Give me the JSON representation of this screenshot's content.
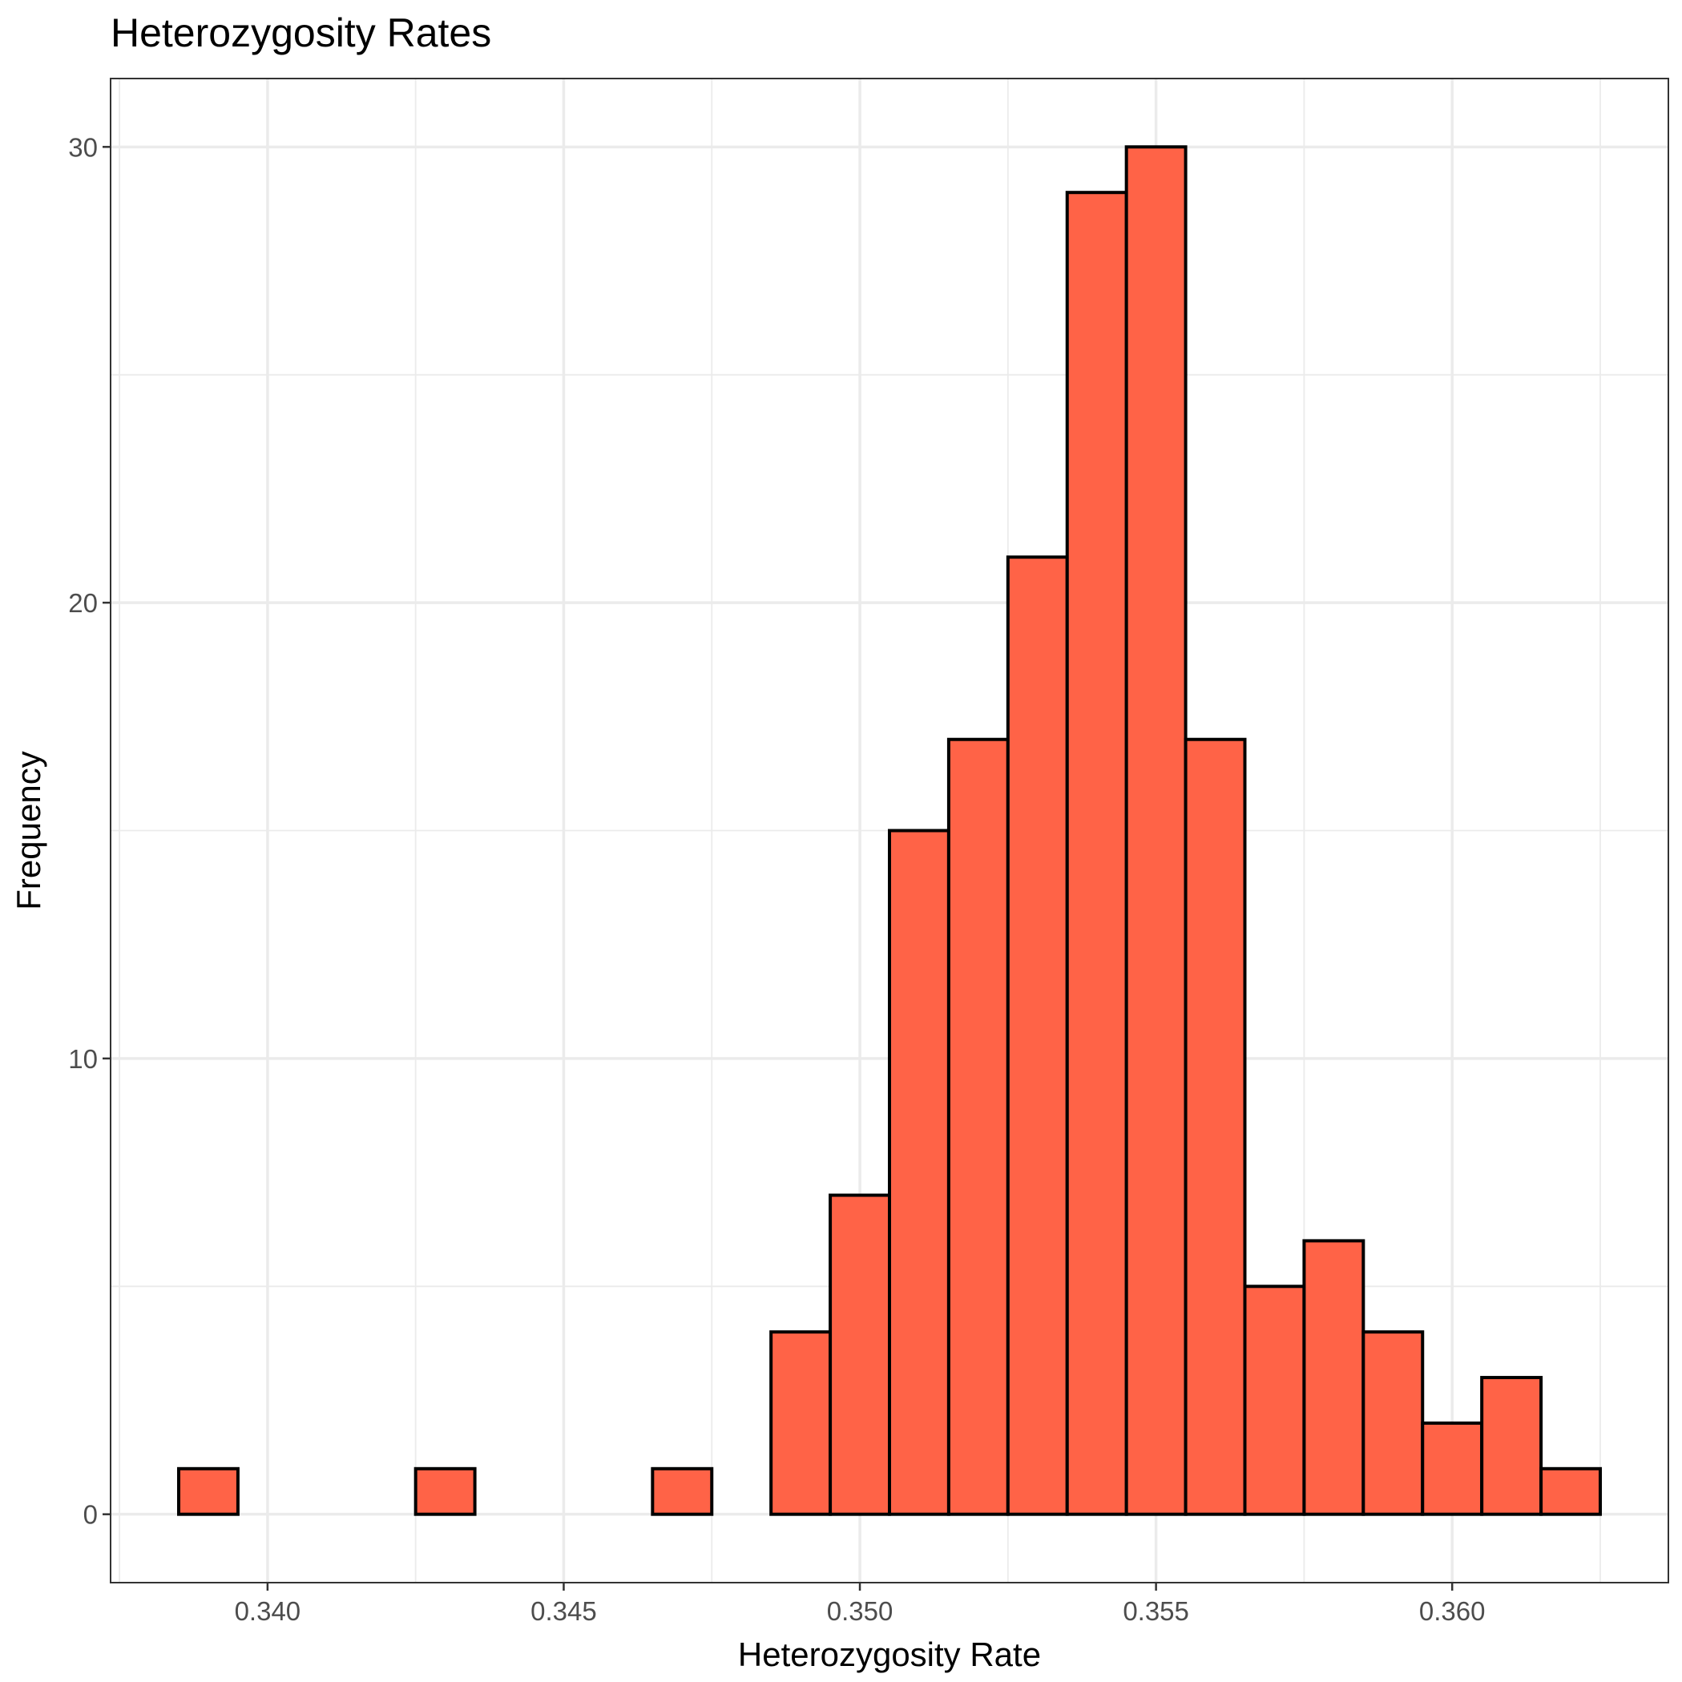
{
  "chart_data": {
    "type": "bar",
    "title": "Heterozygosity Rates",
    "xlabel": "Heterozygosity Rate",
    "ylabel": "Frequency",
    "bin_width": 0.001,
    "bins": [
      {
        "center": 0.339,
        "count": 1
      },
      {
        "center": 0.34,
        "count": 0
      },
      {
        "center": 0.341,
        "count": 0
      },
      {
        "center": 0.342,
        "count": 0
      },
      {
        "center": 0.343,
        "count": 1
      },
      {
        "center": 0.344,
        "count": 0
      },
      {
        "center": 0.345,
        "count": 0
      },
      {
        "center": 0.346,
        "count": 0
      },
      {
        "center": 0.347,
        "count": 1
      },
      {
        "center": 0.348,
        "count": 0
      },
      {
        "center": 0.349,
        "count": 4
      },
      {
        "center": 0.35,
        "count": 7
      },
      {
        "center": 0.351,
        "count": 15
      },
      {
        "center": 0.352,
        "count": 17
      },
      {
        "center": 0.353,
        "count": 21
      },
      {
        "center": 0.354,
        "count": 29
      },
      {
        "center": 0.355,
        "count": 30
      },
      {
        "center": 0.356,
        "count": 17
      },
      {
        "center": 0.357,
        "count": 5
      },
      {
        "center": 0.358,
        "count": 6
      },
      {
        "center": 0.359,
        "count": 4
      },
      {
        "center": 0.36,
        "count": 2
      },
      {
        "center": 0.361,
        "count": 3
      },
      {
        "center": 0.362,
        "count": 1
      }
    ],
    "xlim": [
      0.33735,
      0.36365
    ],
    "ylim": [
      -1.5,
      31.5
    ],
    "xticks": [
      0.34,
      0.345,
      0.35,
      0.355,
      0.36
    ],
    "xtick_labels": [
      "0.340",
      "0.345",
      "0.350",
      "0.355",
      "0.360"
    ],
    "yticks": [
      0,
      10,
      20,
      30
    ],
    "ytick_labels": [
      "0",
      "10",
      "20",
      "30"
    ],
    "grid": true,
    "fill_color": "#ff6347",
    "outline_color": "#000000"
  }
}
